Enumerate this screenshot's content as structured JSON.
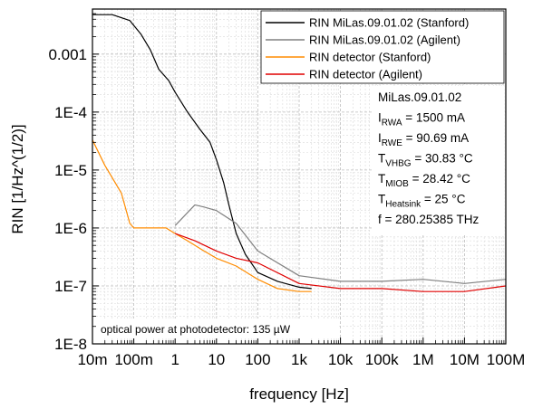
{
  "chart_data": {
    "type": "line",
    "title": "",
    "xlabel": "frequency [Hz]",
    "ylabel": "RIN [1/Hz^(1/2)]",
    "x_scale": "log",
    "y_scale": "log",
    "xlim": [
      0.01,
      100000000
    ],
    "ylim": [
      1e-08,
      0.006
    ],
    "grid": true,
    "legend_placement": "top-right",
    "x_ticks": [
      {
        "value": 0.01,
        "label": "10m"
      },
      {
        "value": 0.1,
        "label": "100m"
      },
      {
        "value": 1,
        "label": "1"
      },
      {
        "value": 10,
        "label": "10"
      },
      {
        "value": 100,
        "label": "100"
      },
      {
        "value": 1000,
        "label": "1k"
      },
      {
        "value": 10000,
        "label": "10k"
      },
      {
        "value": 100000,
        "label": "100k"
      },
      {
        "value": 1000000,
        "label": "1M"
      },
      {
        "value": 10000000,
        "label": "10M"
      },
      {
        "value": 100000000,
        "label": "100M"
      }
    ],
    "y_ticks": [
      {
        "value": 0.001,
        "label": "0.001"
      },
      {
        "value": 0.0001,
        "label": "1E-4"
      },
      {
        "value": 1e-05,
        "label": "1E-5"
      },
      {
        "value": 1e-06,
        "label": "1E-6"
      },
      {
        "value": 1e-07,
        "label": "1E-7"
      },
      {
        "value": 1e-08,
        "label": "1E-8"
      }
    ],
    "series": [
      {
        "name": "RIN MiLas.09.01.02 (Stanford)",
        "color": "#000000",
        "points": [
          [
            0.01,
            0.0048
          ],
          [
            0.03,
            0.0048
          ],
          [
            0.08,
            0.0038
          ],
          [
            0.15,
            0.0022
          ],
          [
            0.25,
            0.0012
          ],
          [
            0.4,
            0.00055
          ],
          [
            0.7,
            0.00035
          ],
          [
            1.0,
            0.00022
          ],
          [
            2,
            0.0001
          ],
          [
            4,
            5e-05
          ],
          [
            7,
            3e-05
          ],
          [
            10,
            1.5e-05
          ],
          [
            15,
            6e-06
          ],
          [
            20,
            2.5e-06
          ],
          [
            30,
            8e-07
          ],
          [
            50,
            3.5e-07
          ],
          [
            100,
            1.7e-07
          ],
          [
            300,
            1.2e-07
          ],
          [
            1000,
            9.5e-08
          ],
          [
            2000,
            9e-08
          ]
        ]
      },
      {
        "name": "RIN MiLas.09.01.02 (Agilent)",
        "color": "#808080",
        "points": [
          [
            1,
            1.1e-06
          ],
          [
            3,
            2.5e-06
          ],
          [
            5,
            2.3e-06
          ],
          [
            10,
            2e-06
          ],
          [
            30,
            1.2e-06
          ],
          [
            100,
            4e-07
          ],
          [
            1000,
            1.5e-07
          ],
          [
            10000,
            1.2e-07
          ],
          [
            100000,
            1.2e-07
          ],
          [
            1000000,
            1.3e-07
          ],
          [
            10000000,
            1.1e-07
          ],
          [
            100000000,
            1.3e-07
          ]
        ]
      },
      {
        "name": "RIN detector (Stanford)",
        "color": "#ff8c00",
        "points": [
          [
            0.01,
            3.3e-05
          ],
          [
            0.02,
            1.2e-05
          ],
          [
            0.05,
            4e-06
          ],
          [
            0.08,
            1.2e-06
          ],
          [
            0.1,
            1e-06
          ],
          [
            0.3,
            1e-06
          ],
          [
            0.6,
            1e-06
          ],
          [
            1,
            8e-07
          ],
          [
            2,
            6e-07
          ],
          [
            5,
            4e-07
          ],
          [
            10,
            3e-07
          ],
          [
            30,
            2.2e-07
          ],
          [
            100,
            1.3e-07
          ],
          [
            300,
            9e-08
          ],
          [
            1000,
            8e-08
          ],
          [
            2000,
            8e-08
          ]
        ]
      },
      {
        "name": "RIN detector (Agilent)",
        "color": "#e00000",
        "points": [
          [
            1,
            8e-07
          ],
          [
            3,
            6e-07
          ],
          [
            10,
            4e-07
          ],
          [
            30,
            3e-07
          ],
          [
            100,
            2.5e-07
          ],
          [
            1000,
            1.1e-07
          ],
          [
            10000,
            9e-08
          ],
          [
            100000,
            9e-08
          ],
          [
            1000000,
            8e-08
          ],
          [
            10000000,
            8e-08
          ],
          [
            100000000,
            1e-07
          ]
        ]
      }
    ]
  },
  "info_box": [
    {
      "main": "MiLas.09.01.02",
      "sub": "",
      "rest": ""
    },
    {
      "main": "I",
      "sub": "RWA",
      "rest": " = 1500 mA"
    },
    {
      "main": "I",
      "sub": "RWE",
      "rest": " = 90.69 mA"
    },
    {
      "main": "T",
      "sub": "VHBG",
      "rest": " = 30.83 °C"
    },
    {
      "main": "T",
      "sub": "MIOB",
      "rest": " = 28.42 °C"
    },
    {
      "main": "T",
      "sub": "Heatsink",
      "rest": " = 25 °C"
    },
    {
      "main": "f = 280.25385 THz",
      "sub": "",
      "rest": ""
    }
  ],
  "note": "optical power at photodetector: 135 µW"
}
